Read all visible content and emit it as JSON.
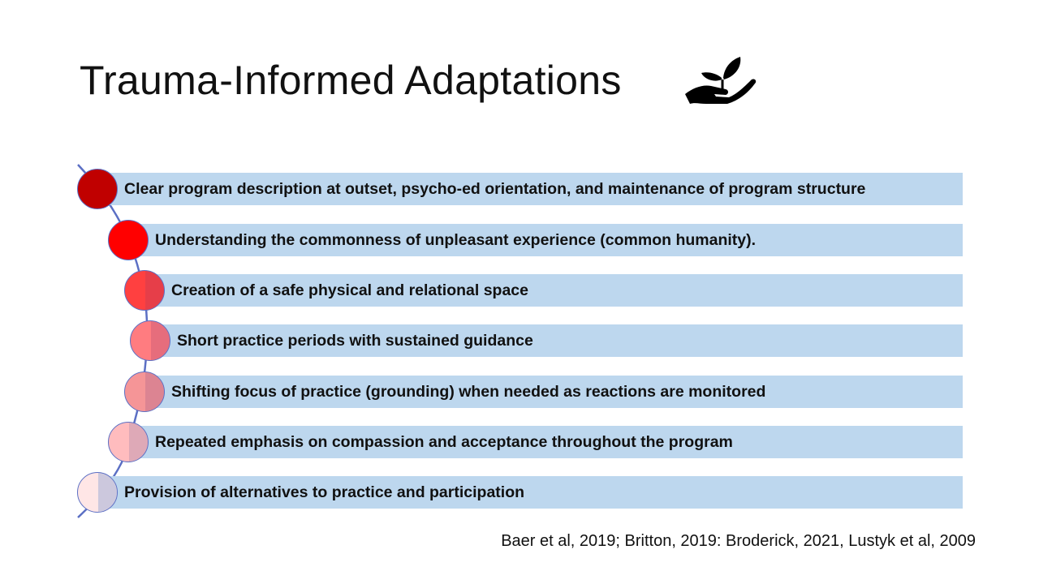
{
  "slide": {
    "title": "Trauma-Informed Adaptations",
    "title_icon": "hand-holding-plant-icon",
    "items": [
      {
        "text": "Clear program description at outset, psycho-ed orientation, and maintenance of program structure",
        "color": "#c00000"
      },
      {
        "text": "Understanding the commonness of unpleasant experience (common humanity).",
        "color": "#ff0000"
      },
      {
        "text": "Creation of a safe physical and relational space",
        "color": "#ff4040"
      },
      {
        "text": "Short practice periods with sustained guidance",
        "color": "#ff7c80"
      },
      {
        "text": "Shifting focus of practice (grounding) when needed as reactions are monitored",
        "color": "#f59597"
      },
      {
        "text": "Repeated emphasis on compassion and acceptance throughout the program",
        "color": "#ffbcbe"
      },
      {
        "text": "Provision of alternatives to practice and participation",
        "color": "#ffe6e6"
      }
    ],
    "citation": "Baer et al, 2019; Britton, 2019: Broderick, 2021, Lustyk et al, 2009",
    "colors": {
      "bar": "#bdd7ee",
      "curve": "#5b6fc4"
    }
  }
}
